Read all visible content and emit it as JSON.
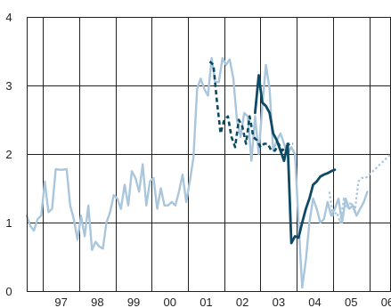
{
  "chart_data": {
    "type": "line",
    "title": "",
    "xlabel": "",
    "ylabel": "",
    "ylim": [
      0,
      4
    ],
    "xlim": [
      1996.55,
      2006.6
    ],
    "grid": true,
    "legend": "none",
    "y_ticks": [
      {
        "value": 0,
        "label": "0"
      },
      {
        "value": 1,
        "label": "1"
      },
      {
        "value": 2,
        "label": "2"
      },
      {
        "value": 3,
        "label": "3"
      },
      {
        "value": 4,
        "label": "4"
      }
    ],
    "x_gridlines": [
      1997,
      1998,
      1999,
      2000,
      2001,
      2002,
      2003,
      2004,
      2005,
      2006
    ],
    "x_ticks": [
      {
        "value": 1997.5,
        "label": "97"
      },
      {
        "value": 1998.5,
        "label": "98"
      },
      {
        "value": 1999.5,
        "label": "99"
      },
      {
        "value": 2000.5,
        "label": "00"
      },
      {
        "value": 2001.5,
        "label": "01"
      },
      {
        "value": 2002.5,
        "label": "02"
      },
      {
        "value": 2003.5,
        "label": "03"
      },
      {
        "value": 2004.5,
        "label": "04"
      },
      {
        "value": 2005.5,
        "label": "05"
      },
      {
        "value": 2006.5,
        "label": "06"
      }
    ],
    "series": [
      {
        "style": "solid",
        "color": "#a9c6dc",
        "width": 2.4,
        "x": [
          1996.55,
          1996.65,
          1996.75,
          1996.85,
          1996.95,
          1997.05,
          1997.15,
          1997.25,
          1997.35,
          1997.45,
          1997.55,
          1997.65,
          1997.75,
          1997.85,
          1997.95,
          1998.05,
          1998.15,
          1998.25,
          1998.35,
          1998.45,
          1998.55,
          1998.65,
          1998.75,
          1998.85,
          1998.95,
          1999.05,
          1999.15,
          1999.25,
          1999.35,
          1999.45,
          1999.55,
          1999.65,
          1999.75,
          1999.85,
          1999.95,
          2000.05,
          2000.15,
          2000.25,
          2000.35,
          2000.45,
          2000.55,
          2000.65,
          2000.75,
          2000.85,
          2000.95,
          2001.05,
          2001.15,
          2001.25,
          2001.35,
          2001.45,
          2001.55,
          2001.65,
          2001.75,
          2001.85,
          2001.95,
          2002.05,
          2002.15,
          2002.25,
          2002.35,
          2002.45,
          2002.55,
          2002.65,
          2002.75,
          2002.85,
          2002.95,
          2003.05,
          2003.15,
          2003.25,
          2003.35,
          2003.45,
          2003.55,
          2003.65,
          2003.75,
          2003.85,
          2003.95,
          2004.05,
          2004.15,
          2004.25,
          2004.35,
          2004.45,
          2004.55,
          2004.65,
          2004.75,
          2004.85,
          2004.95,
          2005.05,
          2005.15,
          2005.25,
          2005.35,
          2005.45,
          2005.55,
          2005.65,
          2005.75,
          2005.85,
          2005.95
        ],
        "y": [
          1.1,
          0.95,
          0.88,
          1.05,
          1.1,
          1.6,
          1.15,
          1.2,
          1.78,
          1.77,
          1.77,
          1.78,
          1.25,
          1.05,
          0.75,
          1.1,
          0.8,
          1.25,
          0.6,
          0.72,
          0.65,
          0.62,
          1.0,
          1.15,
          1.4,
          1.35,
          1.2,
          1.55,
          1.25,
          1.75,
          1.65,
          1.45,
          1.85,
          1.25,
          1.6,
          1.65,
          1.2,
          1.5,
          1.25,
          1.25,
          1.3,
          1.25,
          1.45,
          1.7,
          1.3,
          1.6,
          1.95,
          2.95,
          3.1,
          2.95,
          2.85,
          3.4,
          3.05,
          3.05,
          3.4,
          3.3,
          3.38,
          3.1,
          2.5,
          2.25,
          2.6,
          2.55,
          1.9,
          2.55,
          2.0,
          2.7,
          3.3,
          2.95,
          2.05,
          2.2,
          2.3,
          2.15,
          2.0,
          2.1,
          2.0,
          1.0,
          0.05,
          0.45,
          1.0,
          1.35,
          1.2,
          1.0,
          1.05,
          1.3,
          1.1,
          1.2,
          1.35,
          1.0,
          1.35,
          1.2,
          1.25,
          1.1,
          1.2,
          1.3,
          1.45
        ]
      },
      {
        "style": "dotted",
        "color": "#a9c6dc",
        "width": 2.2,
        "x": [
          2004.9,
          2005.0,
          2005.1,
          2005.2,
          2005.3,
          2005.4,
          2005.5,
          2005.6,
          2005.7,
          2005.8,
          2005.9,
          2006.0,
          2006.1,
          2006.2,
          2006.3,
          2006.4,
          2006.5,
          2006.6
        ],
        "y": [
          1.45,
          1.1,
          1.15,
          1.0,
          1.35,
          1.2,
          1.3,
          1.15,
          1.6,
          1.65,
          1.65,
          1.7,
          1.75,
          1.8,
          1.85,
          1.9,
          1.95,
          2.0
        ]
      },
      {
        "style": "dashed",
        "color": "#0d4a63",
        "width": 2.6,
        "x": [
          2001.6,
          2001.7,
          2001.8,
          2001.9,
          2002.0,
          2002.1,
          2002.2,
          2002.3,
          2002.4,
          2002.5,
          2002.6,
          2002.7,
          2002.8,
          2002.9,
          2003.0,
          2003.1,
          2003.2,
          2003.3,
          2003.4,
          2003.5,
          2003.6,
          2003.7,
          2003.8,
          2003.9
        ],
        "y": [
          3.35,
          3.3,
          2.75,
          2.3,
          2.5,
          2.55,
          2.25,
          2.1,
          2.5,
          2.4,
          2.15,
          2.55,
          2.25,
          2.2,
          2.1,
          2.15,
          2.15,
          2.05,
          2.05,
          2.15,
          2.05,
          2.1,
          2.15,
          2.15
        ]
      },
      {
        "style": "solid",
        "color": "#0d4a63",
        "width": 2.8,
        "x": [
          2002.85,
          2002.95,
          2003.05,
          2003.15,
          2003.25,
          2003.35,
          2003.45,
          2003.55,
          2003.65,
          2003.75,
          2003.85,
          2003.95,
          2004.05,
          2004.15,
          2004.25,
          2004.35,
          2004.45,
          2004.55,
          2004.65,
          2004.75,
          2004.85,
          2004.95,
          2005.05
        ],
        "y": [
          2.6,
          3.15,
          2.75,
          2.7,
          2.6,
          2.3,
          2.2,
          2.05,
          1.9,
          2.15,
          0.7,
          0.8,
          0.78,
          1.0,
          1.2,
          1.35,
          1.55,
          1.6,
          1.67,
          1.7,
          1.72,
          1.75,
          1.77
        ]
      }
    ]
  }
}
